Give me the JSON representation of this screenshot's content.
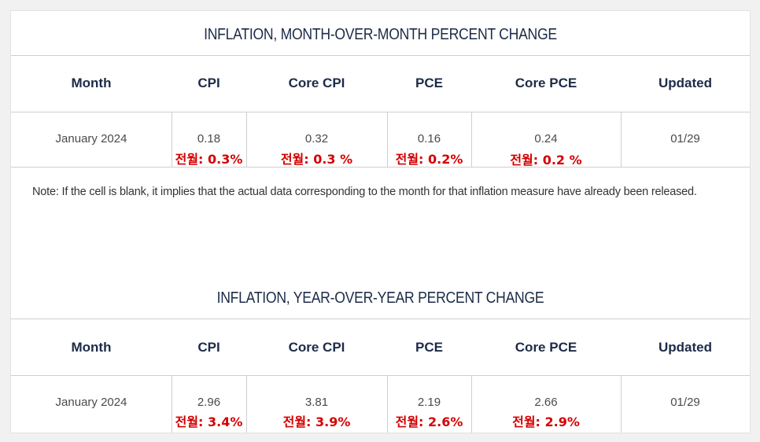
{
  "mom": {
    "title": "INFLATION, MONTH-OVER-MONTH PERCENT CHANGE",
    "headers": [
      "Month",
      "CPI",
      "Core CPI",
      "PCE",
      "Core PCE",
      "Updated"
    ],
    "row": {
      "month": "January 2024",
      "cpi": "0.18",
      "core_cpi": "0.32",
      "pce": "0.16",
      "core_pce": "0.24",
      "updated": "01/29"
    },
    "prev": {
      "cpi": "전월: 0.3%",
      "core_cpi": "전월: 0.3 %",
      "pce": "전월: 0.2%",
      "core_pce": "전월: 0.2 %"
    }
  },
  "note": "Note: If the cell is blank, it implies that the actual data corresponding to the month for that inflation measure have already been released.",
  "yoy": {
    "title": "INFLATION, YEAR-OVER-YEAR PERCENT CHANGE",
    "headers": [
      "Month",
      "CPI",
      "Core CPI",
      "PCE",
      "Core PCE",
      "Updated"
    ],
    "row": {
      "month": "January 2024",
      "cpi": "2.96",
      "core_cpi": "3.81",
      "pce": "2.19",
      "core_pce": "2.66",
      "updated": "01/29"
    },
    "prev": {
      "cpi": "전월: 3.4%",
      "core_cpi": "전월: 3.9%",
      "pce": "전월: 2.6%",
      "core_pce": "전월: 2.9%"
    }
  },
  "colors": {
    "heading": "#1c2b47",
    "annotation": "#d40000",
    "border": "#cfcfcf"
  }
}
